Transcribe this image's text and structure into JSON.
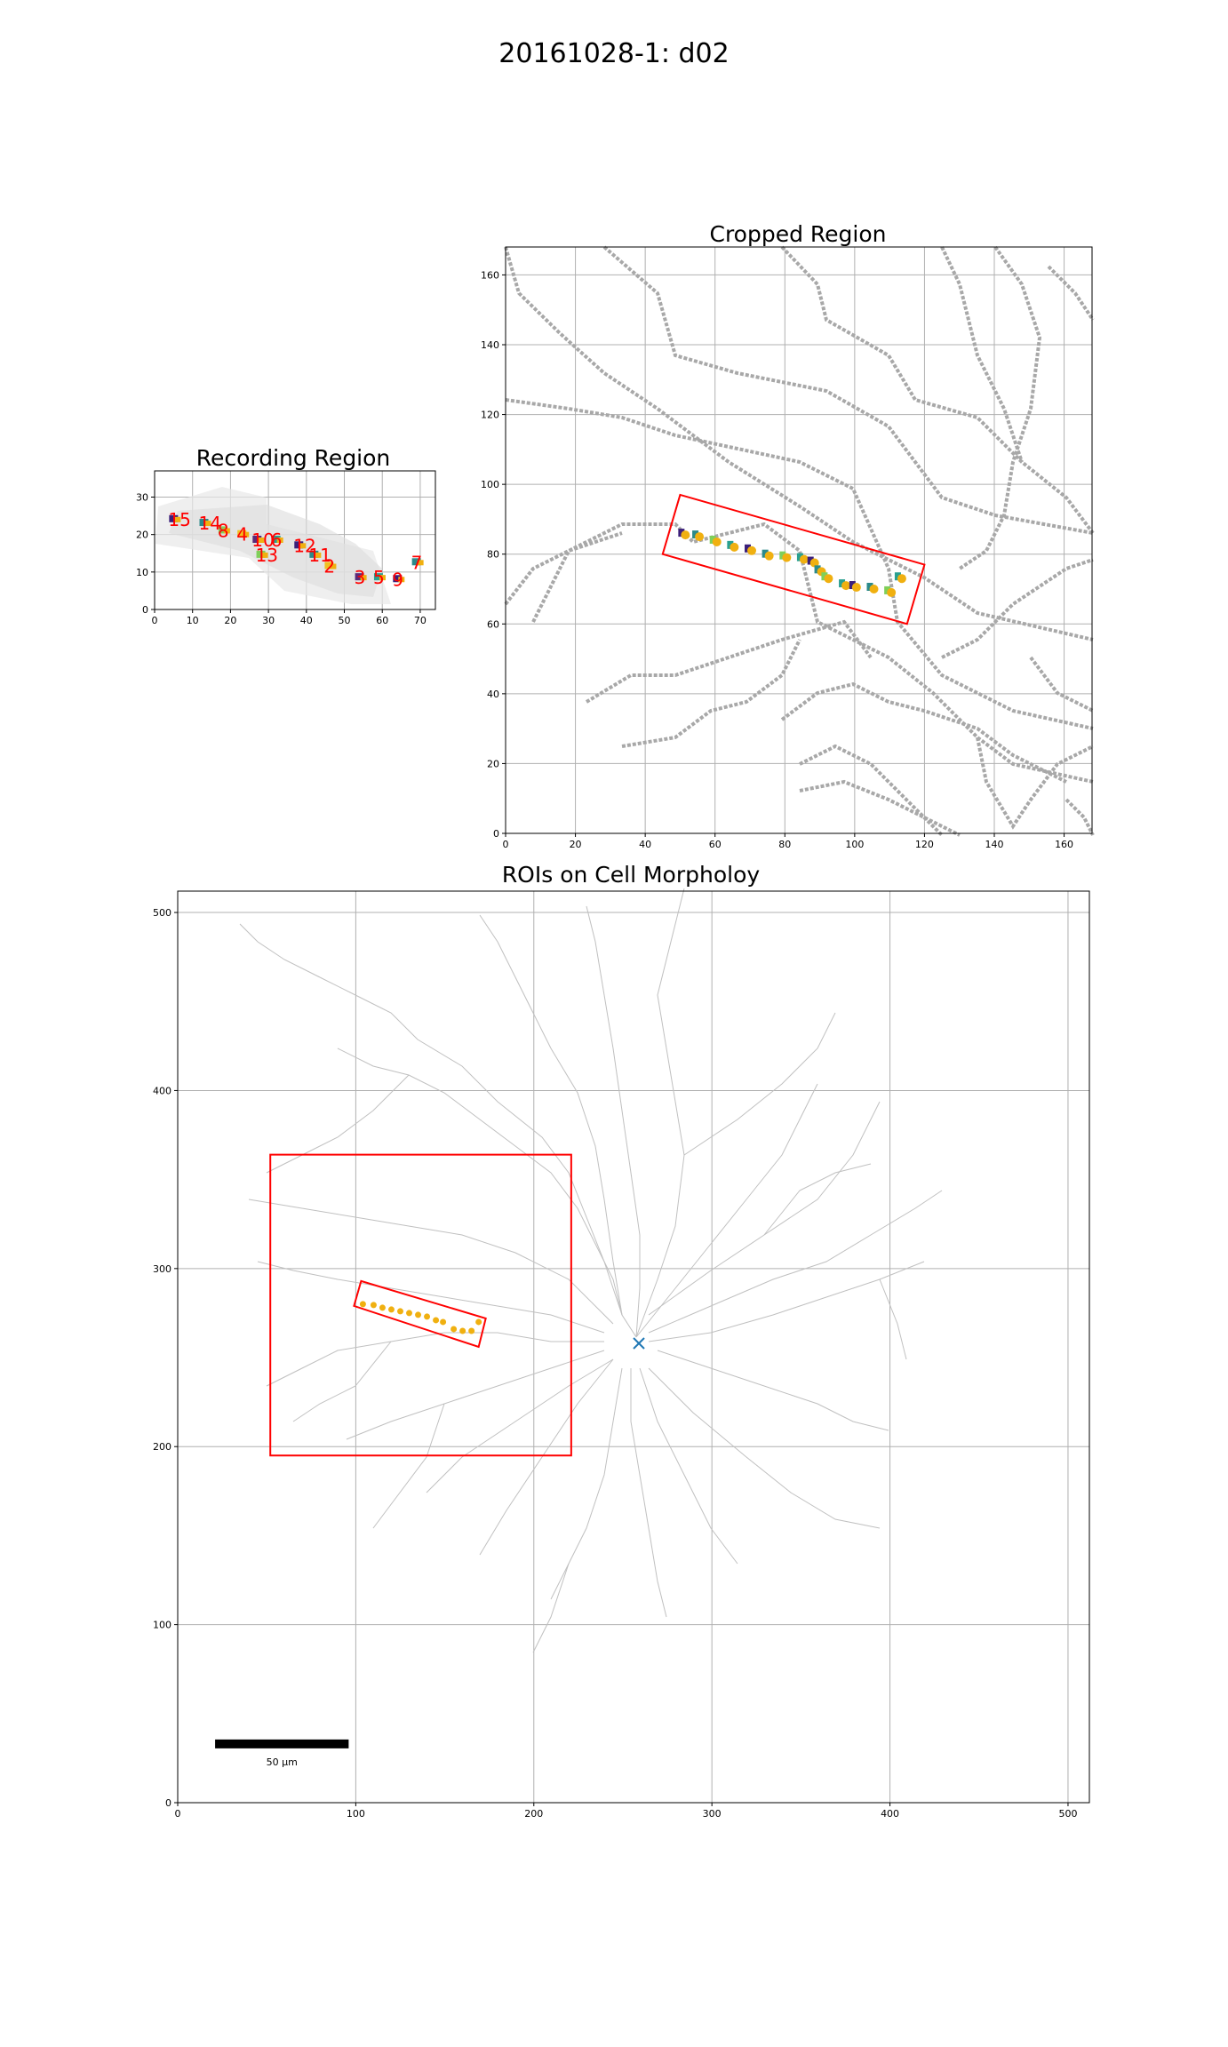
{
  "figure": {
    "suptitle": "20161028-1: d02"
  },
  "chart_data": [
    {
      "type": "scatter",
      "title": "Recording Region",
      "xlim": [
        0,
        74
      ],
      "ylim": [
        0,
        37
      ],
      "xticks": [
        0,
        10,
        20,
        30,
        40,
        50,
        60,
        70
      ],
      "yticks": [
        0,
        10,
        20,
        30
      ],
      "grid": true,
      "rois": [
        {
          "label": "15",
          "x": 5,
          "y": 24
        },
        {
          "label": "14",
          "x": 13,
          "y": 23
        },
        {
          "label": "8",
          "x": 18,
          "y": 21
        },
        {
          "label": "4",
          "x": 23,
          "y": 20
        },
        {
          "label": "10",
          "x": 27,
          "y": 18.5
        },
        {
          "label": "6",
          "x": 32,
          "y": 18.5
        },
        {
          "label": "12",
          "x": 38,
          "y": 17
        },
        {
          "label": "11",
          "x": 42,
          "y": 14.5
        },
        {
          "label": "13",
          "x": 28,
          "y": 14.5
        },
        {
          "label": "2",
          "x": 46,
          "y": 11.5
        },
        {
          "label": "3",
          "x": 54,
          "y": 8.5
        },
        {
          "label": "5",
          "x": 59,
          "y": 8.5
        },
        {
          "label": "9",
          "x": 64,
          "y": 8
        },
        {
          "label": "7",
          "x": 69,
          "y": 12.5
        }
      ]
    },
    {
      "type": "scatter",
      "title": "Cropped Region",
      "xlim": [
        0,
        168
      ],
      "ylim": [
        0,
        168
      ],
      "xticks": [
        0,
        20,
        40,
        60,
        80,
        100,
        120,
        140,
        160
      ],
      "yticks": [
        0,
        20,
        40,
        60,
        80,
        100,
        120,
        140,
        160
      ],
      "grid": true,
      "roi_box": [
        [
          45,
          80
        ],
        [
          50,
          97
        ],
        [
          120,
          77
        ],
        [
          115,
          60
        ]
      ],
      "roi_points": [
        [
          51,
          85.5
        ],
        [
          55,
          85
        ],
        [
          60,
          83.5
        ],
        [
          65,
          82
        ],
        [
          70,
          81
        ],
        [
          75,
          79.5
        ],
        [
          80,
          79
        ],
        [
          85,
          78.5
        ],
        [
          88,
          77.5
        ],
        [
          90,
          75
        ],
        [
          92,
          73
        ],
        [
          97,
          71
        ],
        [
          100,
          70.5
        ],
        [
          105,
          70
        ],
        [
          110,
          69
        ],
        [
          113,
          73
        ]
      ]
    },
    {
      "type": "scatter",
      "title": "ROIs on Cell Morpholoy",
      "xlim": [
        0,
        512
      ],
      "ylim": [
        0,
        512
      ],
      "xticks": [
        0,
        100,
        200,
        300,
        400,
        500
      ],
      "yticks": [
        0,
        100,
        200,
        300,
        400,
        500
      ],
      "grid": true,
      "crop_box": [
        [
          52,
          195
        ],
        [
          221,
          364
        ]
      ],
      "roi_box": [
        [
          99,
          279
        ],
        [
          103,
          293
        ],
        [
          173,
          272
        ],
        [
          169,
          256
        ]
      ],
      "roi_points": [
        [
          104,
          280
        ],
        [
          110,
          279.5
        ],
        [
          115,
          278
        ],
        [
          120,
          277
        ],
        [
          125,
          276
        ],
        [
          130,
          275
        ],
        [
          135,
          274
        ],
        [
          140,
          273
        ],
        [
          145,
          271
        ],
        [
          149,
          270
        ],
        [
          155,
          266
        ],
        [
          160,
          265
        ],
        [
          165,
          265
        ],
        [
          169,
          270
        ]
      ],
      "soma": {
        "x": 259,
        "y": 258
      },
      "scalebar": {
        "label": "50 µm",
        "x0": 21,
        "x1": 96,
        "y": 33
      }
    }
  ],
  "colors": {
    "roi_box": "#ff0000",
    "roi_label": "#ff0000",
    "roi_point": "#f0b010",
    "soma_marker": "#1f77b4",
    "dendrite": "#b8b8b8",
    "grid": "#b0b0b0"
  }
}
